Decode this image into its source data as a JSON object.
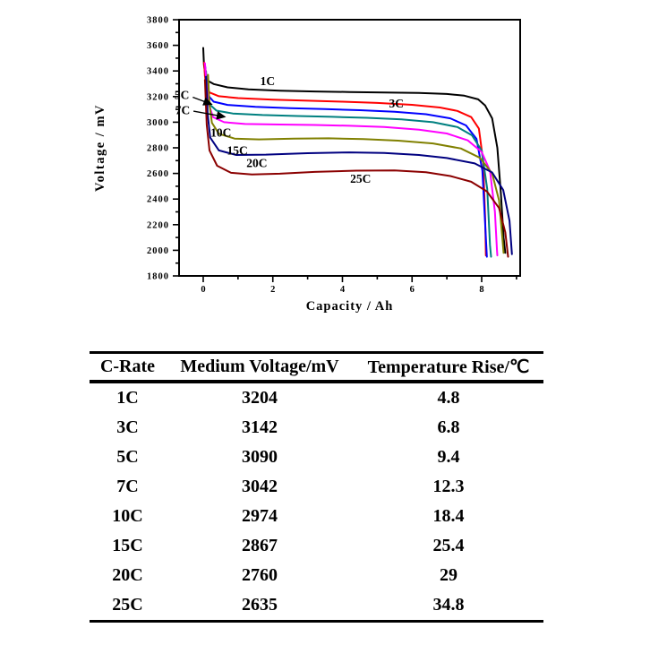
{
  "chart_data": {
    "type": "line",
    "title": "",
    "xlabel": "Capacity / Ah",
    "ylabel": "Voltage / mV",
    "xlim": [
      -0.694,
      9.106
    ],
    "ylim": [
      1800,
      3800
    ],
    "grid": false,
    "legend_position": "inline-curve-labels",
    "x_major_ticks": [
      0,
      2,
      4,
      6,
      8
    ],
    "x_minor_ticks": [
      1,
      3,
      5,
      7,
      9
    ],
    "y_major_ticks": [
      1800,
      2000,
      2200,
      2400,
      2600,
      2800,
      3000,
      3200,
      3400,
      3600,
      3800
    ],
    "y_minor_ticks": [
      1900,
      2100,
      2300,
      2500,
      2700,
      2900,
      3100,
      3300,
      3500,
      3700
    ],
    "series": [
      {
        "name": "1C",
        "color": "#000000",
        "points": [
          [
            0.0,
            3580
          ],
          [
            0.02,
            3450
          ],
          [
            0.06,
            3370
          ],
          [
            0.12,
            3325
          ],
          [
            0.3,
            3298
          ],
          [
            0.7,
            3272
          ],
          [
            1.3,
            3256
          ],
          [
            2.2,
            3246
          ],
          [
            3.2,
            3240
          ],
          [
            4.2,
            3236
          ],
          [
            5.2,
            3232
          ],
          [
            6.2,
            3228
          ],
          [
            7.0,
            3220
          ],
          [
            7.5,
            3207
          ],
          [
            7.9,
            3178
          ],
          [
            8.1,
            3130
          ],
          [
            8.3,
            3030
          ],
          [
            8.45,
            2800
          ],
          [
            8.55,
            2450
          ],
          [
            8.63,
            2100
          ],
          [
            8.68,
            1980
          ]
        ]
      },
      {
        "name": "3C",
        "color": "#FF0000",
        "points": [
          [
            0.03,
            3465
          ],
          [
            0.05,
            3360
          ],
          [
            0.09,
            3280
          ],
          [
            0.18,
            3232
          ],
          [
            0.45,
            3203
          ],
          [
            1.0,
            3188
          ],
          [
            2.0,
            3176
          ],
          [
            3.0,
            3168
          ],
          [
            4.0,
            3160
          ],
          [
            5.0,
            3150
          ],
          [
            6.0,
            3136
          ],
          [
            6.8,
            3115
          ],
          [
            7.3,
            3088
          ],
          [
            7.7,
            3040
          ],
          [
            7.92,
            2950
          ],
          [
            8.04,
            2700
          ],
          [
            8.1,
            2250
          ],
          [
            8.12,
            1960
          ]
        ]
      },
      {
        "name": "5C",
        "color": "#0000FF",
        "points": [
          [
            0.06,
            3430
          ],
          [
            0.09,
            3290
          ],
          [
            0.14,
            3210
          ],
          [
            0.3,
            3160
          ],
          [
            0.7,
            3135
          ],
          [
            1.5,
            3120
          ],
          [
            2.5,
            3110
          ],
          [
            3.5,
            3102
          ],
          [
            4.5,
            3094
          ],
          [
            5.5,
            3082
          ],
          [
            6.4,
            3062
          ],
          [
            7.1,
            3030
          ],
          [
            7.55,
            2975
          ],
          [
            7.85,
            2870
          ],
          [
            8.02,
            2620
          ],
          [
            8.11,
            2150
          ],
          [
            8.15,
            1950
          ]
        ]
      },
      {
        "name": "7C",
        "color": "#008080",
        "points": [
          [
            0.08,
            3400
          ],
          [
            0.12,
            3240
          ],
          [
            0.18,
            3140
          ],
          [
            0.38,
            3090
          ],
          [
            0.85,
            3068
          ],
          [
            1.7,
            3056
          ],
          [
            2.7,
            3048
          ],
          [
            3.7,
            3042
          ],
          [
            4.7,
            3034
          ],
          [
            5.7,
            3022
          ],
          [
            6.6,
            3000
          ],
          [
            7.3,
            2962
          ],
          [
            7.72,
            2898
          ],
          [
            8.0,
            2780
          ],
          [
            8.16,
            2480
          ],
          [
            8.24,
            2040
          ],
          [
            8.27,
            1950
          ]
        ]
      },
      {
        "name": "10C",
        "color": "#FF00FF",
        "points": [
          [
            0.05,
            3460
          ],
          [
            0.09,
            3320
          ],
          [
            0.14,
            3160
          ],
          [
            0.28,
            3040
          ],
          [
            0.6,
            3000
          ],
          [
            1.2,
            2986
          ],
          [
            2.2,
            2982
          ],
          [
            3.2,
            2978
          ],
          [
            4.2,
            2972
          ],
          [
            5.2,
            2962
          ],
          [
            6.2,
            2942
          ],
          [
            7.0,
            2912
          ],
          [
            7.6,
            2858
          ],
          [
            8.0,
            2768
          ],
          [
            8.24,
            2620
          ],
          [
            8.38,
            2300
          ],
          [
            8.44,
            2000
          ],
          [
            8.45,
            1960
          ]
        ]
      },
      {
        "name": "15C",
        "color": "#808000",
        "points": [
          [
            0.14,
            3370
          ],
          [
            0.18,
            3140
          ],
          [
            0.25,
            2995
          ],
          [
            0.45,
            2910
          ],
          [
            0.9,
            2872
          ],
          [
            1.6,
            2866
          ],
          [
            2.6,
            2871
          ],
          [
            3.6,
            2874
          ],
          [
            4.6,
            2868
          ],
          [
            5.6,
            2856
          ],
          [
            6.6,
            2834
          ],
          [
            7.4,
            2795
          ],
          [
            7.95,
            2722
          ],
          [
            8.3,
            2600
          ],
          [
            8.5,
            2390
          ],
          [
            8.6,
            2080
          ],
          [
            8.63,
            1980
          ]
        ]
      },
      {
        "name": "20C",
        "color": "#000080",
        "points": [
          [
            0.08,
            3355
          ],
          [
            0.13,
            3060
          ],
          [
            0.2,
            2880
          ],
          [
            0.45,
            2780
          ],
          [
            0.95,
            2744
          ],
          [
            1.8,
            2747
          ],
          [
            3.0,
            2758
          ],
          [
            4.2,
            2764
          ],
          [
            5.2,
            2760
          ],
          [
            6.2,
            2744
          ],
          [
            7.0,
            2720
          ],
          [
            7.8,
            2678
          ],
          [
            8.3,
            2608
          ],
          [
            8.62,
            2470
          ],
          [
            8.8,
            2230
          ],
          [
            8.87,
            1970
          ]
        ]
      },
      {
        "name": "25C",
        "color": "#8B0000",
        "points": [
          [
            0.05,
            3330
          ],
          [
            0.1,
            2980
          ],
          [
            0.18,
            2780
          ],
          [
            0.4,
            2660
          ],
          [
            0.8,
            2605
          ],
          [
            1.4,
            2592
          ],
          [
            2.2,
            2598
          ],
          [
            3.2,
            2612
          ],
          [
            4.4,
            2622
          ],
          [
            5.5,
            2624
          ],
          [
            6.4,
            2610
          ],
          [
            7.1,
            2580
          ],
          [
            7.7,
            2535
          ],
          [
            8.15,
            2460
          ],
          [
            8.5,
            2330
          ],
          [
            8.68,
            2140
          ],
          [
            8.76,
            1950
          ]
        ]
      }
    ],
    "curve_labels": [
      {
        "text": "1C",
        "cap": 1.85,
        "mv": 3320,
        "anchor": "middle"
      },
      {
        "text": "3C",
        "cap": 5.55,
        "mv": 3145,
        "anchor": "middle"
      },
      {
        "text": "5C",
        "cap": -0.4,
        "mv": 3212,
        "anchor": "end",
        "arrow": {
          "from_cap": -0.3,
          "from_mv": 3195,
          "to_cap": 0.24,
          "to_mv": 3140
        }
      },
      {
        "text": "7C",
        "cap": -0.38,
        "mv": 3094,
        "anchor": "end",
        "arrow": {
          "from_cap": -0.28,
          "from_mv": 3086,
          "to_cap": 0.62,
          "to_mv": 3042
        }
      },
      {
        "text": "10C",
        "cap": 0.51,
        "mv": 2920,
        "anchor": "middle"
      },
      {
        "text": "15C",
        "cap": 0.98,
        "mv": 2780,
        "anchor": "middle"
      },
      {
        "text": "20C",
        "cap": 1.54,
        "mv": 2680,
        "anchor": "middle"
      },
      {
        "text": "25C",
        "cap": 4.52,
        "mv": 2560,
        "anchor": "middle"
      }
    ]
  },
  "table": {
    "columns": [
      "C-Rate",
      "Medium Voltage/mV",
      "Temperature Rise/℃"
    ],
    "rows": [
      [
        "1C",
        "3204",
        "4.8"
      ],
      [
        "3C",
        "3142",
        "6.8"
      ],
      [
        "5C",
        "3090",
        "9.4"
      ],
      [
        "7C",
        "3042",
        "12.3"
      ],
      [
        "10C",
        "2974",
        "18.4"
      ],
      [
        "15C",
        "2867",
        "25.4"
      ],
      [
        "20C",
        "2760",
        "29"
      ],
      [
        "25C",
        "2635",
        "34.8"
      ]
    ]
  }
}
